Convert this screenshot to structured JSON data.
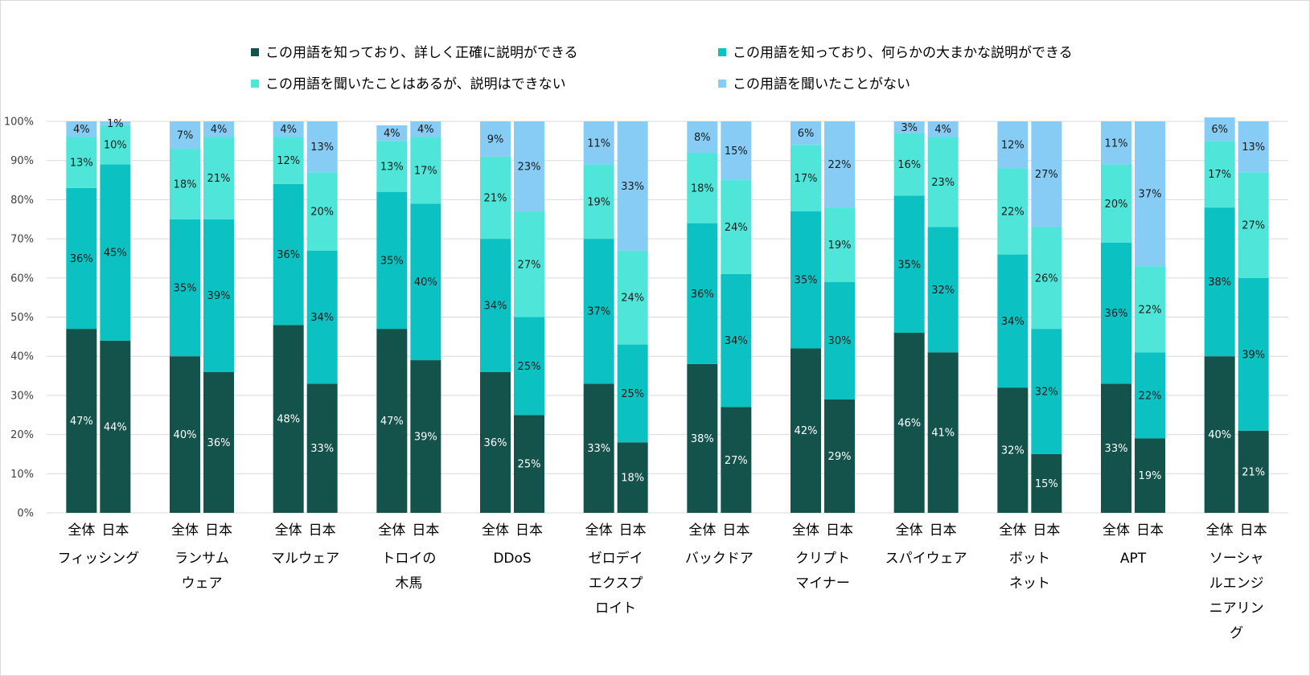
{
  "chart_data": {
    "type": "bar",
    "stacked": true,
    "percent_stacked": true,
    "title": "",
    "xlabel": "",
    "ylabel": "",
    "ylim": [
      0,
      100
    ],
    "yticks": [
      "0%",
      "10%",
      "20%",
      "30%",
      "40%",
      "50%",
      "60%",
      "70%",
      "80%",
      "90%",
      "100%"
    ],
    "grid": true,
    "legend_position": "top",
    "groups": [
      {
        "label_lines": [
          "フィッシング"
        ]
      },
      {
        "label_lines": [
          "ランサム",
          "ウェア"
        ]
      },
      {
        "label_lines": [
          "マルウェア"
        ]
      },
      {
        "label_lines": [
          "トロイの",
          "木馬"
        ]
      },
      {
        "label_lines": [
          "DDoS"
        ]
      },
      {
        "label_lines": [
          "ゼロデイ",
          "エクスプ",
          "ロイト"
        ]
      },
      {
        "label_lines": [
          "バックドア"
        ]
      },
      {
        "label_lines": [
          "クリプト",
          "マイナー"
        ]
      },
      {
        "label_lines": [
          "スパイウェア"
        ]
      },
      {
        "label_lines": [
          "ボット",
          "ネット"
        ]
      },
      {
        "label_lines": [
          "APT"
        ]
      },
      {
        "label_lines": [
          "ソーシャ",
          "ルエンジ",
          "ニアリン",
          "グ"
        ]
      }
    ],
    "sub_categories": [
      "全体",
      "日本"
    ],
    "series": [
      {
        "name": "この用語を知っており、詳しく正確に説明ができる",
        "color": "#13534c",
        "label_color": "#ffffff",
        "values": [
          [
            47,
            44
          ],
          [
            40,
            36
          ],
          [
            48,
            33
          ],
          [
            47,
            39
          ],
          [
            36,
            25
          ],
          [
            33,
            18
          ],
          [
            38,
            27
          ],
          [
            42,
            29
          ],
          [
            46,
            41
          ],
          [
            32,
            15
          ],
          [
            33,
            19
          ],
          [
            40,
            21
          ]
        ]
      },
      {
        "name": "この用語を知っており、何らかの大まかな説明ができる",
        "color": "#0cc1c1",
        "label_color": "#1a1a1a",
        "values": [
          [
            36,
            45
          ],
          [
            35,
            39
          ],
          [
            36,
            34
          ],
          [
            35,
            40
          ],
          [
            34,
            25
          ],
          [
            37,
            25
          ],
          [
            36,
            34
          ],
          [
            35,
            30
          ],
          [
            35,
            32
          ],
          [
            34,
            32
          ],
          [
            36,
            22
          ],
          [
            38,
            39
          ]
        ]
      },
      {
        "name": "この用語を聞いたことはあるが、説明はできない",
        "color": "#4fe6d9",
        "label_color": "#1a1a1a",
        "values": [
          [
            13,
            10
          ],
          [
            18,
            21
          ],
          [
            12,
            20
          ],
          [
            13,
            17
          ],
          [
            21,
            27
          ],
          [
            19,
            24
          ],
          [
            18,
            24
          ],
          [
            17,
            19
          ],
          [
            16,
            23
          ],
          [
            22,
            26
          ],
          [
            20,
            22
          ],
          [
            17,
            27
          ]
        ]
      },
      {
        "name": "この用語を聞いたことがない",
        "color": "#86ccf5",
        "label_color": "#1a1a1a",
        "values": [
          [
            4,
            1
          ],
          [
            7,
            4
          ],
          [
            4,
            13
          ],
          [
            4,
            4
          ],
          [
            9,
            23
          ],
          [
            11,
            33
          ],
          [
            8,
            15
          ],
          [
            6,
            22
          ],
          [
            3,
            4
          ],
          [
            12,
            27
          ],
          [
            11,
            37
          ],
          [
            6,
            13
          ]
        ]
      }
    ]
  }
}
